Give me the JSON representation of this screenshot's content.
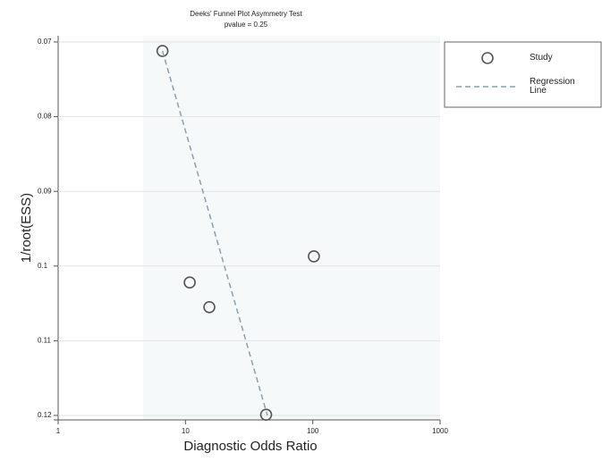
{
  "chart_data": {
    "type": "scatter",
    "title": "Deeks' Funnel Plot Asymmetry Test",
    "subtitle": "pvalue = 0.25",
    "x_label": "Diagnostic Odds Ratio",
    "y_label": "1/root(ESS)",
    "xlim": [
      1,
      1000
    ],
    "xticks": [
      1,
      10,
      100,
      1000
    ],
    "xscale": "log",
    "ylim": [
      0.12,
      0.07
    ],
    "yticks": [
      0.07,
      0.08,
      0.09,
      0.1,
      0.11,
      0.12
    ],
    "grid": true,
    "legend": "right",
    "series": [
      {
        "name": "Study",
        "type": "scatter",
        "color": "#555555",
        "x": [
          6.6,
          10.8,
          15.4,
          102,
          43
        ],
        "values": [
          0.0712,
          0.1022,
          0.1055,
          0.0987,
          0.1199
        ]
      },
      {
        "name": "Regression Line",
        "type": "line",
        "color": "#8aa0b0",
        "x": [
          6.6,
          44
        ],
        "values": [
          0.0712,
          0.12
        ]
      }
    ]
  }
}
